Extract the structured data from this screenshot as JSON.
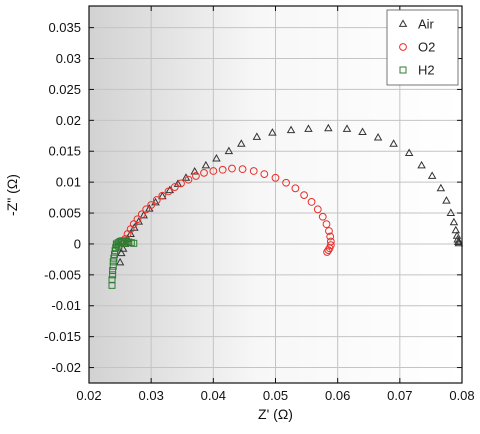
{
  "chart_data": {
    "type": "scatter",
    "title": "",
    "xlabel": "Z' (Ω)",
    "ylabel": "-Z\" (Ω)",
    "xlim": [
      0.02,
      0.08
    ],
    "ylim": [
      -0.0225,
      0.0385
    ],
    "x_ticks": [
      "0.02",
      "0.03",
      "0.04",
      "0.05",
      "0.06",
      "0.07",
      "0.08"
    ],
    "y_ticks": [
      "0.035",
      "0.03",
      "0.025",
      "0.02",
      "0.015",
      "0.01",
      "0.005",
      "0",
      "-0.005",
      "-0.01",
      "-0.015",
      "-0.02"
    ],
    "grid": true,
    "legend_position": "top-right",
    "series": [
      {
        "name": "Air",
        "marker": "triangle",
        "color": "#333333",
        "points": [
          [
            0.025,
            -0.003
          ],
          [
            0.0252,
            -0.0015
          ],
          [
            0.0255,
            -0.0008
          ],
          [
            0.0258,
            0.0
          ],
          [
            0.0262,
            0.0008
          ],
          [
            0.0267,
            0.0016
          ],
          [
            0.0273,
            0.0026
          ],
          [
            0.028,
            0.0036
          ],
          [
            0.0288,
            0.0046
          ],
          [
            0.0297,
            0.0057
          ],
          [
            0.0307,
            0.0067
          ],
          [
            0.0318,
            0.0077
          ],
          [
            0.033,
            0.0087
          ],
          [
            0.0343,
            0.0097
          ],
          [
            0.0356,
            0.0107
          ],
          [
            0.037,
            0.0117
          ],
          [
            0.0388,
            0.0127
          ],
          [
            0.0405,
            0.0138
          ],
          [
            0.0425,
            0.015
          ],
          [
            0.0445,
            0.0162
          ],
          [
            0.047,
            0.0173
          ],
          [
            0.0495,
            0.018
          ],
          [
            0.0525,
            0.0184
          ],
          [
            0.0553,
            0.0186
          ],
          [
            0.0585,
            0.0187
          ],
          [
            0.0615,
            0.0186
          ],
          [
            0.064,
            0.0181
          ],
          [
            0.0665,
            0.0172
          ],
          [
            0.069,
            0.0162
          ],
          [
            0.0715,
            0.0147
          ],
          [
            0.0735,
            0.0127
          ],
          [
            0.0752,
            0.011
          ],
          [
            0.0766,
            0.009
          ],
          [
            0.0775,
            0.007
          ],
          [
            0.0782,
            0.005
          ],
          [
            0.0787,
            0.0035
          ],
          [
            0.079,
            0.0022
          ],
          [
            0.0792,
            0.0013
          ],
          [
            0.0793,
            0.0007
          ],
          [
            0.0794,
            0.0003
          ],
          [
            0.0795,
            0.0001
          ]
        ]
      },
      {
        "name": "O2",
        "marker": "circle",
        "color": "#e8302a",
        "points": [
          [
            0.0255,
            0.0001
          ],
          [
            0.0258,
            0.0008
          ],
          [
            0.0262,
            0.0016
          ],
          [
            0.0267,
            0.0024
          ],
          [
            0.0272,
            0.0032
          ],
          [
            0.0278,
            0.004
          ],
          [
            0.0285,
            0.0048
          ],
          [
            0.0292,
            0.0056
          ],
          [
            0.03,
            0.0063
          ],
          [
            0.0309,
            0.0071
          ],
          [
            0.0318,
            0.0078
          ],
          [
            0.0328,
            0.0085
          ],
          [
            0.0338,
            0.0092
          ],
          [
            0.0348,
            0.0098
          ],
          [
            0.036,
            0.0104
          ],
          [
            0.0372,
            0.011
          ],
          [
            0.0385,
            0.0115
          ],
          [
            0.04,
            0.0118
          ],
          [
            0.0415,
            0.012
          ],
          [
            0.043,
            0.0122
          ],
          [
            0.0447,
            0.0121
          ],
          [
            0.0465,
            0.0118
          ],
          [
            0.0482,
            0.0113
          ],
          [
            0.05,
            0.0107
          ],
          [
            0.0517,
            0.0099
          ],
          [
            0.0532,
            0.009
          ],
          [
            0.0546,
            0.0079
          ],
          [
            0.0558,
            0.0068
          ],
          [
            0.0568,
            0.0056
          ],
          [
            0.0576,
            0.0044
          ],
          [
            0.0582,
            0.0032
          ],
          [
            0.0586,
            0.0021
          ],
          [
            0.0588,
            0.0012
          ],
          [
            0.0589,
            0.0004
          ],
          [
            0.0589,
            -0.0002
          ],
          [
            0.0587,
            -0.0007
          ],
          [
            0.0585,
            -0.001
          ],
          [
            0.0583,
            -0.0013
          ]
        ]
      },
      {
        "name": "H2",
        "marker": "square",
        "color": "#2f7d32",
        "points": [
          [
            0.0237,
            -0.0067
          ],
          [
            0.0237,
            -0.0058
          ],
          [
            0.0238,
            -0.005
          ],
          [
            0.0238,
            -0.0043
          ],
          [
            0.0239,
            -0.0036
          ],
          [
            0.0239,
            -0.0029
          ],
          [
            0.024,
            -0.0023
          ],
          [
            0.0241,
            -0.0017
          ],
          [
            0.0242,
            -0.0011
          ],
          [
            0.0243,
            -0.0006
          ],
          [
            0.0245,
            -0.0002
          ],
          [
            0.0247,
            0.0002
          ],
          [
            0.025,
            0.0004
          ],
          [
            0.0253,
            0.0005
          ],
          [
            0.0256,
            0.0005
          ],
          [
            0.026,
            0.0004
          ],
          [
            0.0264,
            0.0003
          ],
          [
            0.0268,
            0.0002
          ],
          [
            0.0272,
            0.0001
          ],
          [
            0.0244,
            0.0
          ],
          [
            0.0248,
            -0.0004
          ],
          [
            0.0252,
            0.0002
          ],
          [
            0.0257,
            0.0001
          ]
        ]
      }
    ]
  }
}
